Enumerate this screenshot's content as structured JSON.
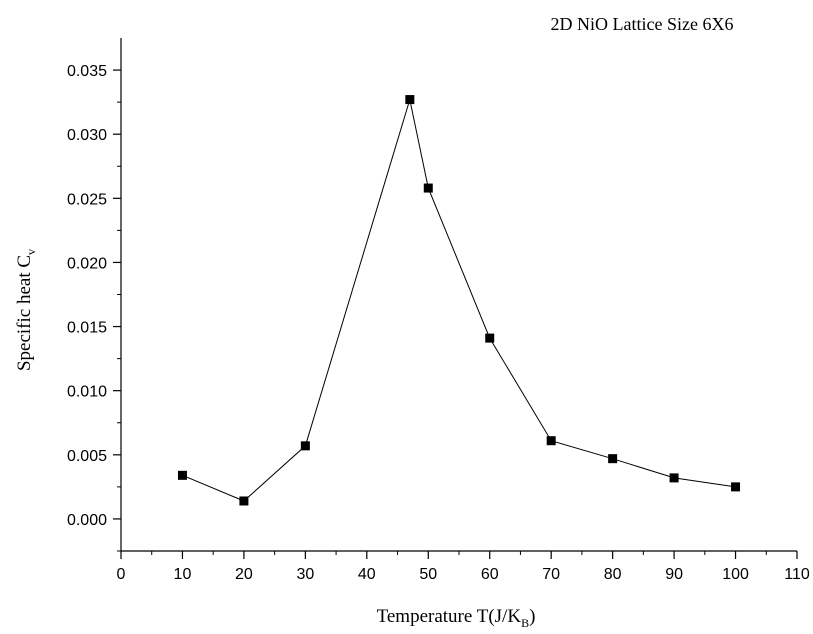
{
  "chart_data": {
    "type": "line",
    "title": "2D NiO Lattice Size 6X6",
    "xlabel": {
      "main": "Temperature T(J/K",
      "subscript": "B",
      "suffix": ")"
    },
    "ylabel": {
      "main": "Specific heat C",
      "subscript": "v"
    },
    "xlim": [
      0,
      110
    ],
    "ylim": [
      -0.0025,
      0.0375
    ],
    "x_ticks": [
      0,
      10,
      20,
      30,
      40,
      50,
      60,
      70,
      80,
      90,
      100,
      110
    ],
    "y_ticks": [
      0.0,
      0.005,
      0.01,
      0.015,
      0.02,
      0.025,
      0.03,
      0.035
    ],
    "x_tick_labels": [
      "0",
      "10",
      "20",
      "30",
      "40",
      "50",
      "60",
      "70",
      "80",
      "90",
      "100",
      "110"
    ],
    "y_tick_labels": [
      "0.000",
      "0.005",
      "0.010",
      "0.015",
      "0.020",
      "0.025",
      "0.030",
      "0.035"
    ],
    "grid": false,
    "legend": "none",
    "marker": "square",
    "series": [
      {
        "x": [
          10,
          20,
          30,
          47,
          50,
          60,
          70,
          80,
          90,
          100
        ],
        "y": [
          0.0034,
          0.0014,
          0.0057,
          0.0327,
          0.0258,
          0.0141,
          0.0061,
          0.0047,
          0.0032,
          0.0025
        ]
      }
    ]
  }
}
